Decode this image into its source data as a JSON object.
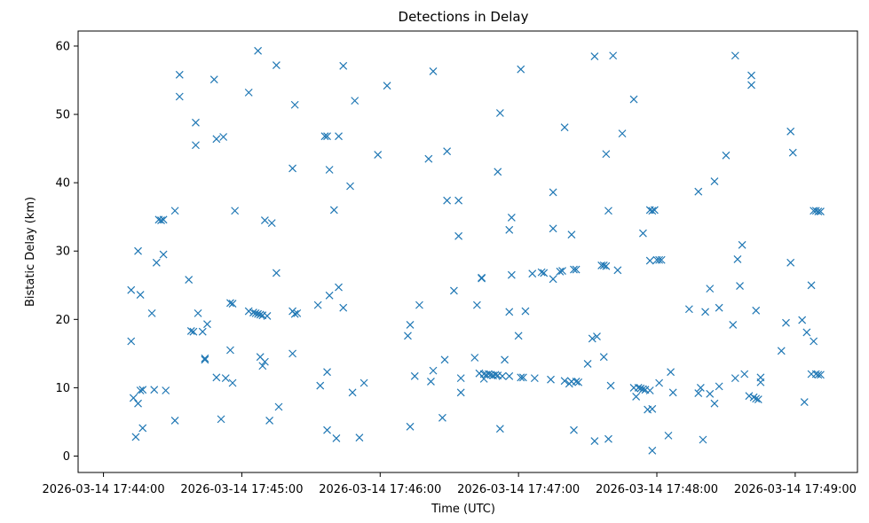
{
  "chart_data": {
    "type": "scatter",
    "title": "Detections in Delay",
    "xlabel": "Time (UTC)",
    "ylabel": "Bistatic Delay (km)",
    "x_ticks": [
      "2026-03-14 17:44:00",
      "2026-03-14 17:45:00",
      "2026-03-14 17:46:00",
      "2026-03-14 17:47:00",
      "2026-03-14 17:48:00",
      "2026-03-14 17:49:00"
    ],
    "y_ticks": [
      "0",
      "10",
      "20",
      "30",
      "40",
      "50",
      "60"
    ],
    "xlim": [
      "2026-03-14 17:43:49",
      "2026-03-14 17:49:27"
    ],
    "ylim": [
      -2.4,
      62.2
    ],
    "grid": false,
    "marker": "x",
    "color": "#1f77b4",
    "points": [
      [
        "17:44:12",
        24.3
      ],
      [
        "17:44:12",
        16.8
      ],
      [
        "17:44:13",
        8.5
      ],
      [
        "17:44:14",
        2.8
      ],
      [
        "17:44:15",
        7.7
      ],
      [
        "17:44:15",
        30.0
      ],
      [
        "17:44:16",
        23.6
      ],
      [
        "17:44:16",
        9.6
      ],
      [
        "17:44:17",
        9.7
      ],
      [
        "17:44:17",
        4.1
      ],
      [
        "17:44:21",
        20.9
      ],
      [
        "17:44:22",
        9.7
      ],
      [
        "17:44:23",
        28.3
      ],
      [
        "17:44:24",
        34.6
      ],
      [
        "17:44:25",
        34.5
      ],
      [
        "17:44:26",
        34.6
      ],
      [
        "17:44:26",
        29.5
      ],
      [
        "17:44:27",
        9.6
      ],
      [
        "17:44:31",
        35.9
      ],
      [
        "17:44:31",
        5.2
      ],
      [
        "17:44:33",
        55.8
      ],
      [
        "17:44:33",
        52.6
      ],
      [
        "17:44:37",
        25.8
      ],
      [
        "17:44:38",
        18.3
      ],
      [
        "17:44:39",
        18.2
      ],
      [
        "17:44:40",
        45.5
      ],
      [
        "17:44:40",
        48.8
      ],
      [
        "17:44:41",
        20.9
      ],
      [
        "17:44:43",
        18.2
      ],
      [
        "17:44:44",
        14.3
      ],
      [
        "17:44:44",
        14.1
      ],
      [
        "17:44:45",
        19.3
      ],
      [
        "17:44:48",
        55.1
      ],
      [
        "17:44:49",
        46.4
      ],
      [
        "17:44:49",
        11.5
      ],
      [
        "17:44:51",
        5.4
      ],
      [
        "17:44:52",
        46.7
      ],
      [
        "17:44:53",
        11.4
      ],
      [
        "17:44:55",
        15.5
      ],
      [
        "17:44:55",
        22.4
      ],
      [
        "17:44:56",
        22.3
      ],
      [
        "17:44:56",
        10.7
      ],
      [
        "17:44:57",
        35.9
      ],
      [
        "17:45:03",
        53.2
      ],
      [
        "17:45:03",
        21.2
      ],
      [
        "17:45:05",
        21.0
      ],
      [
        "17:45:06",
        20.9
      ],
      [
        "17:45:07",
        20.8
      ],
      [
        "17:45:07",
        59.3
      ],
      [
        "17:45:08",
        20.7
      ],
      [
        "17:45:08",
        14.5
      ],
      [
        "17:45:09",
        20.6
      ],
      [
        "17:45:09",
        13.2
      ],
      [
        "17:45:10",
        34.5
      ],
      [
        "17:45:10",
        13.8
      ],
      [
        "17:45:11",
        20.5
      ],
      [
        "17:45:12",
        5.2
      ],
      [
        "17:45:13",
        34.1
      ],
      [
        "17:45:15",
        57.2
      ],
      [
        "17:45:15",
        26.8
      ],
      [
        "17:45:16",
        7.2
      ],
      [
        "17:45:22",
        21.2
      ],
      [
        "17:45:22",
        15.0
      ],
      [
        "17:45:22",
        42.1
      ],
      [
        "17:45:23",
        20.8
      ],
      [
        "17:45:23",
        51.4
      ],
      [
        "17:45:24",
        20.9
      ],
      [
        "17:45:33",
        22.1
      ],
      [
        "17:45:34",
        10.3
      ],
      [
        "17:45:36",
        46.8
      ],
      [
        "17:45:37",
        46.8
      ],
      [
        "17:45:37",
        3.8
      ],
      [
        "17:45:37",
        12.3
      ],
      [
        "17:45:38",
        41.9
      ],
      [
        "17:45:38",
        23.5
      ],
      [
        "17:45:40",
        36.0
      ],
      [
        "17:45:41",
        2.6
      ],
      [
        "17:45:42",
        46.8
      ],
      [
        "17:45:42",
        24.7
      ],
      [
        "17:45:44",
        57.1
      ],
      [
        "17:45:44",
        21.7
      ],
      [
        "17:45:47",
        39.5
      ],
      [
        "17:45:48",
        9.3
      ],
      [
        "17:45:49",
        52.0
      ],
      [
        "17:45:51",
        2.7
      ],
      [
        "17:45:53",
        10.7
      ],
      [
        "17:45:59",
        44.1
      ],
      [
        "17:46:03",
        54.2
      ],
      [
        "17:46:12",
        17.6
      ],
      [
        "17:46:13",
        4.3
      ],
      [
        "17:46:13",
        19.2
      ],
      [
        "17:46:15",
        11.7
      ],
      [
        "17:46:17",
        22.1
      ],
      [
        "17:46:21",
        43.5
      ],
      [
        "17:46:22",
        10.9
      ],
      [
        "17:46:23",
        56.3
      ],
      [
        "17:46:23",
        12.5
      ],
      [
        "17:46:27",
        5.6
      ],
      [
        "17:46:28",
        14.1
      ],
      [
        "17:46:29",
        44.6
      ],
      [
        "17:46:29",
        37.4
      ],
      [
        "17:46:32",
        24.2
      ],
      [
        "17:46:34",
        32.2
      ],
      [
        "17:46:34",
        37.4
      ],
      [
        "17:46:35",
        11.4
      ],
      [
        "17:46:35",
        9.3
      ],
      [
        "17:46:41",
        14.4
      ],
      [
        "17:46:42",
        22.1
      ],
      [
        "17:46:43",
        12.1
      ],
      [
        "17:46:44",
        26.1
      ],
      [
        "17:46:44",
        26.0
      ],
      [
        "17:46:45",
        12.0
      ],
      [
        "17:46:45",
        11.3
      ],
      [
        "17:46:46",
        11.9
      ],
      [
        "17:46:47",
        12.0
      ],
      [
        "17:46:48",
        11.9
      ],
      [
        "17:46:49",
        11.8
      ],
      [
        "17:46:50",
        11.9
      ],
      [
        "17:46:51",
        11.8
      ],
      [
        "17:46:51",
        41.6
      ],
      [
        "17:46:52",
        50.2
      ],
      [
        "17:46:52",
        4.0
      ],
      [
        "17:46:53",
        11.7
      ],
      [
        "17:46:54",
        14.1
      ],
      [
        "17:46:56",
        11.7
      ],
      [
        "17:46:56",
        21.1
      ],
      [
        "17:46:56",
        33.1
      ],
      [
        "17:46:57",
        26.5
      ],
      [
        "17:46:57",
        34.9
      ],
      [
        "17:47:00",
        17.6
      ],
      [
        "17:47:01",
        11.5
      ],
      [
        "17:47:01",
        56.6
      ],
      [
        "17:47:02",
        11.5
      ],
      [
        "17:47:03",
        21.2
      ],
      [
        "17:47:06",
        26.7
      ],
      [
        "17:47:07",
        11.4
      ],
      [
        "17:47:10",
        26.9
      ],
      [
        "17:47:11",
        26.8
      ],
      [
        "17:47:14",
        11.2
      ],
      [
        "17:47:15",
        25.9
      ],
      [
        "17:47:15",
        38.6
      ],
      [
        "17:47:15",
        33.3
      ],
      [
        "17:47:18",
        27.0
      ],
      [
        "17:47:19",
        27.1
      ],
      [
        "17:47:20",
        48.1
      ],
      [
        "17:47:20",
        11.0
      ],
      [
        "17:47:22",
        10.6
      ],
      [
        "17:47:23",
        32.4
      ],
      [
        "17:47:23",
        10.9
      ],
      [
        "17:47:24",
        3.8
      ],
      [
        "17:47:24",
        27.3
      ],
      [
        "17:47:25",
        27.3
      ],
      [
        "17:47:25",
        10.9
      ],
      [
        "17:47:26",
        10.8
      ],
      [
        "17:47:30",
        13.5
      ],
      [
        "17:47:32",
        17.2
      ],
      [
        "17:47:33",
        58.5
      ],
      [
        "17:47:33",
        2.2
      ],
      [
        "17:47:34",
        17.5
      ],
      [
        "17:47:37",
        14.5
      ],
      [
        "17:47:36",
        27.9
      ],
      [
        "17:47:37",
        27.9
      ],
      [
        "17:47:38",
        27.8
      ],
      [
        "17:47:38",
        44.2
      ],
      [
        "17:47:39",
        2.5
      ],
      [
        "17:47:39",
        35.9
      ],
      [
        "17:47:40",
        10.3
      ],
      [
        "17:47:41",
        58.6
      ],
      [
        "17:47:43",
        27.2
      ],
      [
        "17:47:45",
        47.2
      ],
      [
        "17:47:50",
        52.2
      ],
      [
        "17:47:50",
        10.0
      ],
      [
        "17:47:51",
        8.7
      ],
      [
        "17:47:52",
        10.0
      ],
      [
        "17:47:53",
        9.9
      ],
      [
        "17:47:54",
        9.8
      ],
      [
        "17:47:54",
        32.6
      ],
      [
        "17:47:55",
        9.7
      ],
      [
        "17:47:56",
        6.8
      ],
      [
        "17:47:57",
        9.6
      ],
      [
        "17:47:57",
        36.0
      ],
      [
        "17:47:57",
        28.6
      ],
      [
        "17:47:58",
        35.9
      ],
      [
        "17:47:58",
        6.9
      ],
      [
        "17:47:58",
        0.8
      ],
      [
        "17:47:59",
        36.0
      ],
      [
        "17:48:00",
        28.7
      ],
      [
        "17:48:01",
        28.7
      ],
      [
        "17:48:01",
        10.7
      ],
      [
        "17:48:02",
        28.7
      ],
      [
        "17:48:05",
        3.0
      ],
      [
        "17:48:06",
        12.3
      ],
      [
        "17:48:07",
        9.3
      ],
      [
        "17:48:14",
        21.5
      ],
      [
        "17:48:18",
        38.7
      ],
      [
        "17:48:18",
        9.2
      ],
      [
        "17:48:19",
        10.0
      ],
      [
        "17:48:20",
        2.4
      ],
      [
        "17:48:21",
        21.1
      ],
      [
        "17:48:23",
        9.1
      ],
      [
        "17:48:23",
        24.5
      ],
      [
        "17:48:25",
        40.2
      ],
      [
        "17:48:25",
        7.7
      ],
      [
        "17:48:27",
        21.7
      ],
      [
        "17:48:27",
        10.2
      ],
      [
        "17:48:30",
        44.0
      ],
      [
        "17:48:33",
        19.2
      ],
      [
        "17:48:34",
        58.6
      ],
      [
        "17:48:34",
        11.4
      ],
      [
        "17:48:35",
        28.8
      ],
      [
        "17:48:36",
        24.9
      ],
      [
        "17:48:37",
        30.9
      ],
      [
        "17:48:38",
        12.0
      ],
      [
        "17:48:40",
        8.8
      ],
      [
        "17:48:41",
        55.7
      ],
      [
        "17:48:41",
        54.3
      ],
      [
        "17:48:42",
        8.6
      ],
      [
        "17:48:43",
        8.4
      ],
      [
        "17:48:43",
        21.3
      ],
      [
        "17:48:44",
        8.3
      ],
      [
        "17:48:45",
        11.5
      ],
      [
        "17:48:45",
        10.8
      ],
      [
        "17:48:54",
        15.4
      ],
      [
        "17:48:56",
        19.5
      ],
      [
        "17:48:58",
        28.3
      ],
      [
        "17:48:58",
        47.5
      ],
      [
        "17:48:59",
        44.4
      ],
      [
        "17:49:03",
        19.9
      ],
      [
        "17:49:04",
        7.9
      ],
      [
        "17:49:05",
        18.1
      ],
      [
        "17:49:07",
        25.0
      ],
      [
        "17:49:07",
        12.0
      ],
      [
        "17:49:08",
        16.8
      ],
      [
        "17:49:08",
        35.9
      ],
      [
        "17:49:09",
        35.9
      ],
      [
        "17:49:09",
        12.0
      ],
      [
        "17:49:10",
        35.8
      ],
      [
        "17:49:10",
        11.9
      ],
      [
        "17:49:11",
        35.8
      ],
      [
        "17:49:11",
        11.9
      ]
    ]
  }
}
